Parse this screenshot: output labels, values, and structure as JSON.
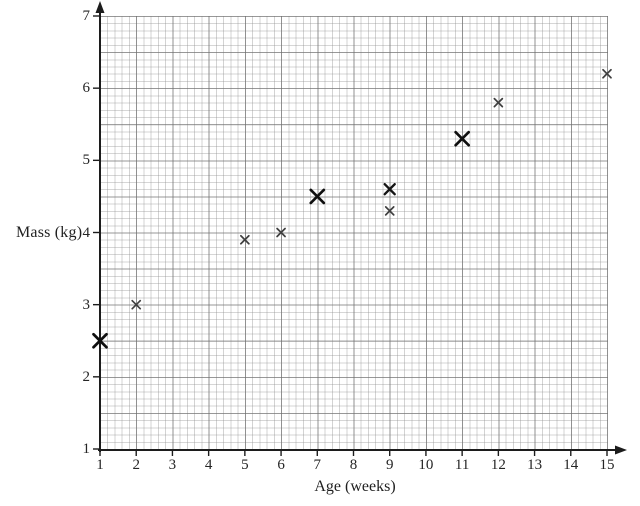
{
  "figure": {
    "background": "#ffffff",
    "axis_color": "#1c1c1c",
    "tick_text_color": "#252525",
    "grid_minor_color": "#d6d6d6",
    "grid_emphasis_color": "#a9a9a9"
  },
  "chart_data": {
    "type": "scatter",
    "title": "",
    "xlabel": "Age (weeks)",
    "ylabel": "Mass (kg)",
    "xlim": [
      1,
      15
    ],
    "ylim": [
      1,
      7
    ],
    "x_ticks": [
      1,
      2,
      3,
      4,
      5,
      6,
      7,
      8,
      9,
      10,
      11,
      12,
      13,
      14,
      15
    ],
    "y_ticks": [
      1,
      2,
      3,
      4,
      5,
      6,
      7
    ],
    "grid": "fine graph paper: minor cell 0.2 weeks x 0.1 kg, emphasized line every 5 minor cells, no legend",
    "marker": "x",
    "marker_styles": {
      "large": {
        "half": 6.5,
        "stroke": 2.7,
        "color": "#0f0f0f"
      },
      "medium": {
        "half": 5.0,
        "stroke": 2.4,
        "color": "#151515"
      },
      "small": {
        "half": 4.0,
        "stroke": 1.7,
        "color": "#3f3f3f"
      }
    },
    "points": [
      {
        "x": 1,
        "y": 2.5,
        "size": "large"
      },
      {
        "x": 2,
        "y": 3.0,
        "size": "small"
      },
      {
        "x": 5,
        "y": 3.9,
        "size": "small"
      },
      {
        "x": 6,
        "y": 4.0,
        "size": "small"
      },
      {
        "x": 7,
        "y": 4.5,
        "size": "large"
      },
      {
        "x": 9,
        "y": 4.3,
        "size": "small"
      },
      {
        "x": 9,
        "y": 4.6,
        "size": "medium"
      },
      {
        "x": 11,
        "y": 5.3,
        "size": "large"
      },
      {
        "x": 12,
        "y": 5.8,
        "size": "small"
      },
      {
        "x": 15,
        "y": 6.2,
        "size": "small"
      }
    ]
  }
}
